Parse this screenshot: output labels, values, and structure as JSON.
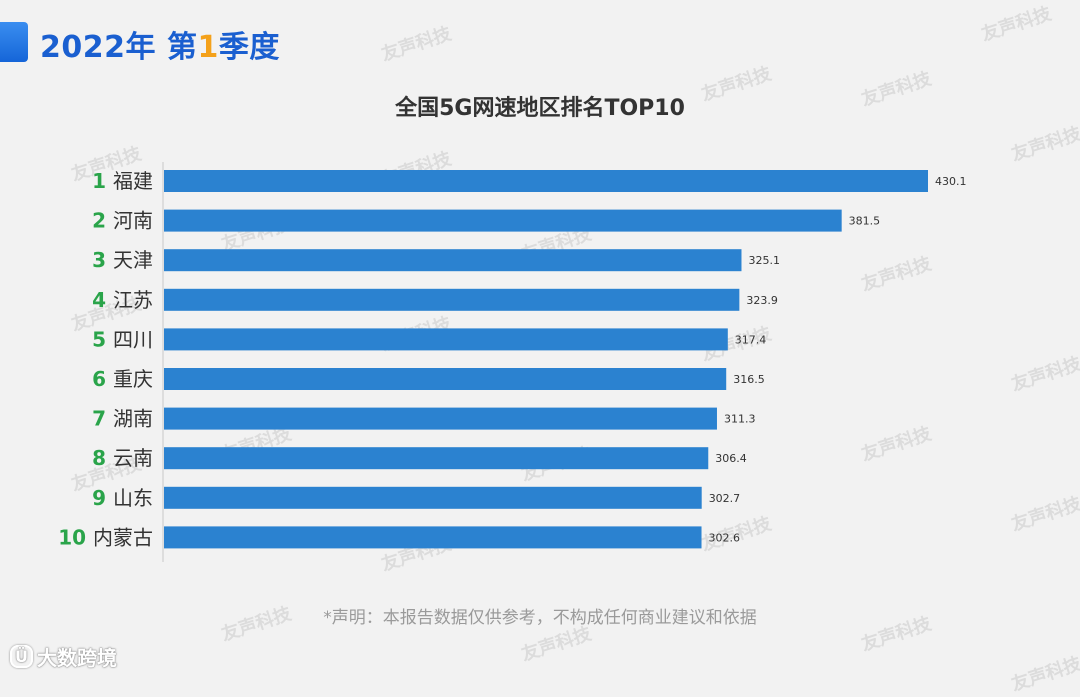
{
  "header": {
    "title_prefix": "2022年 第",
    "title_number": "1",
    "title_suffix": "季度"
  },
  "watermark_text": "友声科技",
  "chart_data": {
    "type": "bar",
    "orientation": "horizontal",
    "title": "全国5G网速地区排名TOP10",
    "ranks": [
      "1",
      "2",
      "3",
      "4",
      "5",
      "6",
      "7",
      "8",
      "9",
      "10"
    ],
    "categories": [
      "福建",
      "河南",
      "天津",
      "江苏",
      "四川",
      "重庆",
      "湖南",
      "云南",
      "山东",
      "内蒙古"
    ],
    "values": [
      430.1,
      381.5,
      325.1,
      323.9,
      317.4,
      316.5,
      311.3,
      306.4,
      302.7,
      302.6
    ],
    "value_labels": [
      "430.1",
      "381.5",
      "325.1",
      "323.9",
      "317.4",
      "316.5",
      "311.3",
      "306.4",
      "302.7",
      "302.6"
    ],
    "xlim": [
      0,
      430.1
    ],
    "grid": false,
    "bar_color": "#2b82d0",
    "rank_color": "#2aa44a"
  },
  "disclaimer": "*声明：本报告数据仅供参考，不构成任何商业建议和依据",
  "footer_logo": {
    "icon_text": "Ü",
    "label": "大数跨境"
  }
}
